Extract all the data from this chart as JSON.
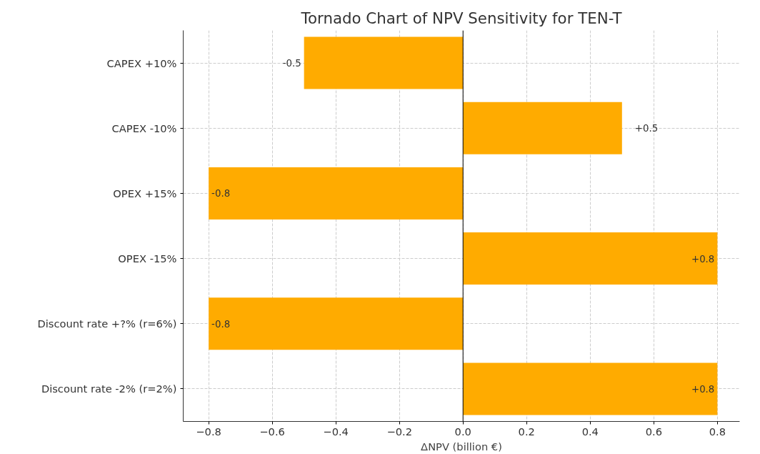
{
  "chart_data": {
    "type": "bar",
    "orientation": "horizontal",
    "title": "Tornado Chart of NPV Sensitivity for TEN-T",
    "xlabel": "ΔNPV (billion €)",
    "categories": [
      "CAPEX +10%",
      "CAPEX -10%",
      "OPEX +15%",
      "OPEX -15%",
      "Discount rate +?% (r=6%)",
      "Discount rate -2% (r=2%)"
    ],
    "values": [
      -0.5,
      0.5,
      -0.8,
      0.8,
      -0.8,
      0.8
    ],
    "value_labels": [
      "-0.5",
      "+0.5",
      "-0.8",
      "+0.8",
      "-0.8",
      "+0.8"
    ],
    "color": "#ffab00",
    "xlim": [
      -0.88,
      0.87
    ],
    "xticks": [
      {
        "value": -0.8,
        "label": "−0.8"
      },
      {
        "value": -0.6,
        "label": "−0.6"
      },
      {
        "value": -0.4,
        "label": "−0.4"
      },
      {
        "value": -0.2,
        "label": "−0.2"
      },
      {
        "value": 0,
        "label": "0.0"
      },
      {
        "value": 0.2,
        "label": "0.2"
      },
      {
        "value": 0.4,
        "label": "0.4"
      },
      {
        "value": 0.6,
        "label": "0.6"
      },
      {
        "value": 0.8,
        "label": "0.8"
      }
    ],
    "ref_lines": [
      {
        "axis": "x",
        "value": 0,
        "label": null,
        "color": "#000000"
      }
    ],
    "grid": true
  }
}
